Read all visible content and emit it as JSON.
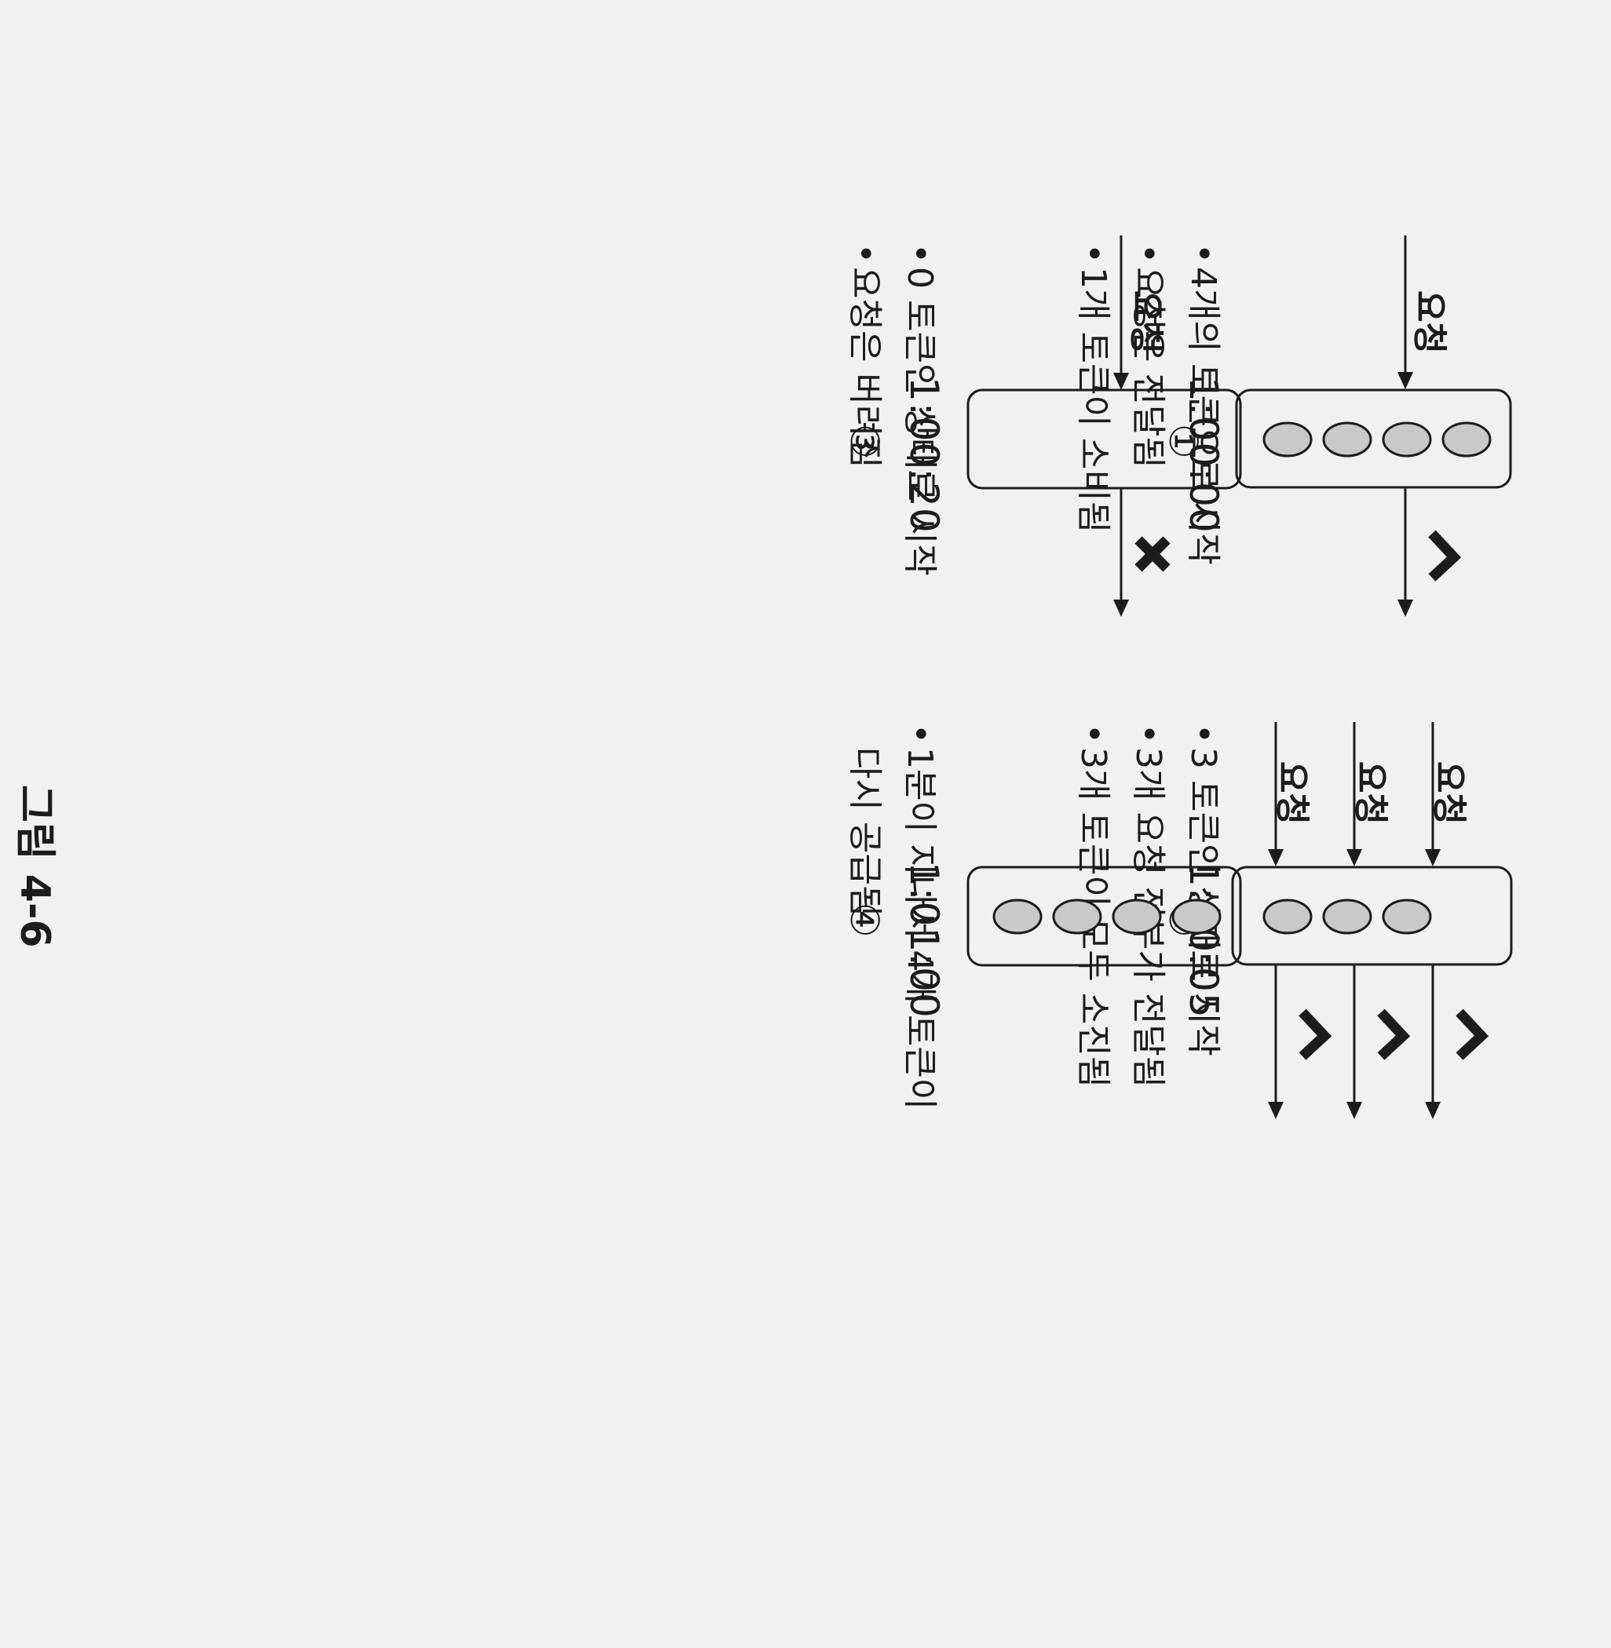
{
  "panels": [
    {
      "step": "①",
      "time": "1:00:00",
      "requests": [
        "요청"
      ],
      "tokens_in_bucket": 4,
      "outcomes": [
        "pass"
      ],
      "bullets": [
        "4개의 토큰으로 시작",
        "요청은 전달됨",
        "1개 토큰이 소비됨"
      ]
    },
    {
      "step": "②",
      "time": "1:00:05",
      "requests": [
        "요청",
        "요청",
        "요청"
      ],
      "tokens_in_bucket": 3,
      "outcomes": [
        "pass",
        "pass",
        "pass"
      ],
      "bullets": [
        "3 토큰인 상태로 시작",
        "3개 요청 전부가 전달됨",
        "3개 토큰이 모두 소진됨"
      ]
    },
    {
      "step": "③",
      "time": "1:00:20",
      "requests": [
        "요청"
      ],
      "tokens_in_bucket": 0,
      "outcomes": [
        "drop"
      ],
      "bullets": [
        "0 토큰인 상태로 시작",
        "요청은 버려짐"
      ]
    },
    {
      "step": "④",
      "time": "1:01:00",
      "requests": [],
      "tokens_in_bucket": 4,
      "outcomes": [],
      "bullets": [
        "1분이 지나서 4개 토큰이",
        "다시 공급됨"
      ]
    }
  ],
  "caption": "그림 4-6",
  "icons": {
    "pass": "check-icon",
    "drop": "x-mark-icon",
    "token": "token-icon"
  },
  "colors": {
    "background": "#f1f1ef",
    "ink": "#1c1c1c",
    "token_fill": "#c9c9c7"
  }
}
